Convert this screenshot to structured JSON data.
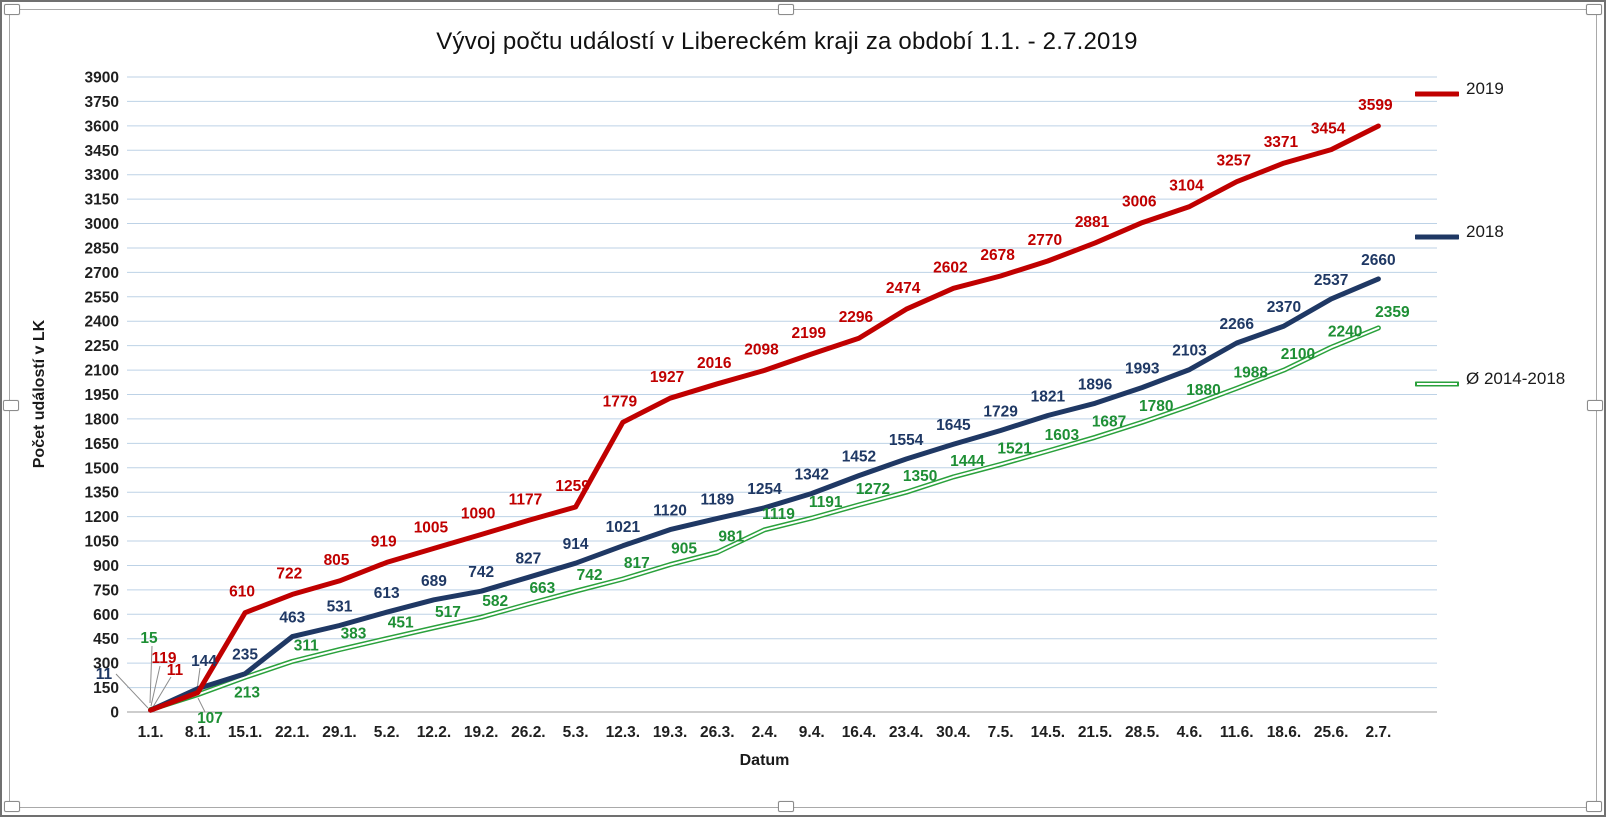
{
  "window": {
    "kind": "spreadsheet-chart-object",
    "selected": true
  },
  "chart_data": {
    "type": "line",
    "title": "Vývoj počtu událostí v Libereckém kraji za období 1.1. - 2.7.2019",
    "xlabel": "Datum",
    "ylabel": "Počet událostí v LK",
    "ylim": [
      0,
      3900
    ],
    "ytick_step": 150,
    "grid": true,
    "grid_color": "#bdd2e6",
    "axis_line_color": "#9b9b9b",
    "legend_position": "right",
    "data_labels": true,
    "categories": [
      "1.1.",
      "8.1.",
      "15.1.",
      "22.1.",
      "29.1.",
      "5.2.",
      "12.2.",
      "19.2.",
      "26.2.",
      "5.3.",
      "12.3.",
      "19.3.",
      "26.3.",
      "2.4.",
      "9.4.",
      "16.4.",
      "23.4.",
      "30.4.",
      "7.5.",
      "14.5.",
      "21.5.",
      "28.5.",
      "4.6.",
      "11.6.",
      "18.6.",
      "25.6.",
      "2.7."
    ],
    "series": [
      {
        "name": "2019",
        "color": "#c00000",
        "label_color": "#c00000",
        "style": "solid",
        "values": [
          11,
          119,
          610,
          722,
          805,
          919,
          1005,
          1090,
          1177,
          1259,
          1779,
          1927,
          2016,
          2098,
          2199,
          2296,
          2474,
          2602,
          2678,
          2770,
          2881,
          3006,
          3104,
          3257,
          3371,
          3454,
          3599
        ]
      },
      {
        "name": "2018",
        "color": "#1f3864",
        "label_color": "#1f3864",
        "style": "solid",
        "values": [
          11,
          144,
          235,
          463,
          531,
          613,
          689,
          742,
          827,
          914,
          1021,
          1120,
          1189,
          1254,
          1342,
          1452,
          1554,
          1645,
          1729,
          1821,
          1896,
          1993,
          2103,
          2266,
          2370,
          2537,
          2660
        ]
      },
      {
        "name": "Ø 2014-2018",
        "color": "#2aa13c",
        "label_color": "#1e8f35",
        "style": "double",
        "values": [
          15,
          107,
          213,
          311,
          383,
          451,
          517,
          582,
          663,
          742,
          817,
          905,
          981,
          1119,
          1191,
          1272,
          1350,
          1444,
          1521,
          1603,
          1687,
          1780,
          1880,
          1988,
          2100,
          2240,
          2359
        ]
      }
    ]
  }
}
